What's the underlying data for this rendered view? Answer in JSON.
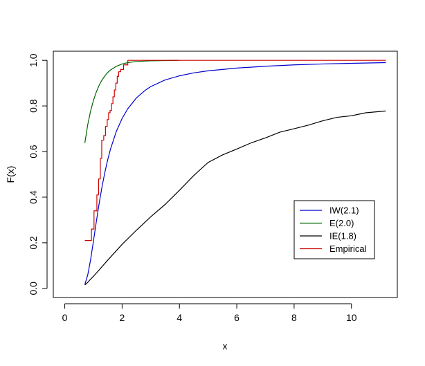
{
  "chart_data": {
    "type": "line",
    "xlabel": "x",
    "ylabel": "F(x)",
    "xlim": [
      -0.4,
      11.6
    ],
    "ylim": [
      -0.04,
      1.04
    ],
    "x_ticks": [
      0,
      2,
      4,
      6,
      8,
      10
    ],
    "y_ticks": [
      0.0,
      0.2,
      0.4,
      0.6,
      0.8,
      1.0
    ],
    "x_tick_labels": [
      "0",
      "2",
      "4",
      "6",
      "8",
      "10"
    ],
    "y_tick_labels": [
      "0.0",
      "0.2",
      "0.4",
      "0.6",
      "0.8",
      "1.0"
    ],
    "grid": false,
    "legend_position": "right",
    "series": [
      {
        "name": "IW(2.1)",
        "color": "#0000cc",
        "style": "line",
        "x": [
          0.7,
          0.8,
          0.9,
          1.0,
          1.1,
          1.2,
          1.3,
          1.4,
          1.5,
          1.6,
          1.8,
          2.0,
          2.2,
          2.5,
          2.8,
          3.0,
          3.5,
          4.0,
          4.5,
          5.0,
          6.0,
          7.0,
          8.0,
          9.0,
          10.0,
          11.2
        ],
        "y": [
          0.017,
          0.058,
          0.125,
          0.207,
          0.292,
          0.373,
          0.446,
          0.51,
          0.565,
          0.613,
          0.689,
          0.745,
          0.788,
          0.835,
          0.868,
          0.885,
          0.914,
          0.932,
          0.945,
          0.954,
          0.966,
          0.974,
          0.98,
          0.984,
          0.987,
          0.99
        ]
      },
      {
        "name": "E(2.0)",
        "color": "#006600",
        "style": "line",
        "x": [
          0.7,
          0.8,
          0.9,
          1.0,
          1.1,
          1.2,
          1.3,
          1.4,
          1.5,
          1.6,
          1.8,
          2.0,
          2.2,
          2.5,
          3.0,
          3.5,
          4.0
        ],
        "y": [
          0.637,
          0.717,
          0.777,
          0.824,
          0.861,
          0.891,
          0.914,
          0.932,
          0.947,
          0.958,
          0.974,
          0.984,
          0.99,
          0.995,
          0.998,
          0.999,
          1.0
        ]
      },
      {
        "name": "IE(1.8)",
        "color": "#000000",
        "style": "line",
        "x": [
          0.7,
          0.8,
          0.9,
          1.0,
          1.2,
          1.5,
          2.0,
          2.5,
          3.0,
          3.5,
          4.0,
          4.5,
          5.0,
          5.5,
          6.0,
          6.5,
          7.0,
          7.5,
          8.0,
          8.5,
          9.0,
          9.5,
          10.0,
          10.5,
          11.2
        ],
        "y": [
          0.015,
          0.026,
          0.04,
          0.053,
          0.081,
          0.124,
          0.193,
          0.255,
          0.314,
          0.368,
          0.43,
          0.495,
          0.552,
          0.585,
          0.611,
          0.638,
          0.66,
          0.685,
          0.7,
          0.716,
          0.735,
          0.75,
          0.757,
          0.77,
          0.778
        ]
      },
      {
        "name": "Empirical",
        "color": "#cc0000",
        "style": "step",
        "x": [
          0.7,
          0.93,
          1.02,
          1.12,
          1.18,
          1.24,
          1.29,
          1.36,
          1.42,
          1.48,
          1.53,
          1.58,
          1.63,
          1.68,
          1.73,
          1.78,
          1.83,
          1.88,
          1.95,
          2.05,
          2.2,
          11.2
        ],
        "y": [
          0.21,
          0.26,
          0.34,
          0.41,
          0.48,
          0.57,
          0.65,
          0.67,
          0.71,
          0.74,
          0.77,
          0.78,
          0.81,
          0.84,
          0.87,
          0.9,
          0.93,
          0.95,
          0.96,
          0.98,
          1.0,
          1.0
        ]
      }
    ]
  }
}
